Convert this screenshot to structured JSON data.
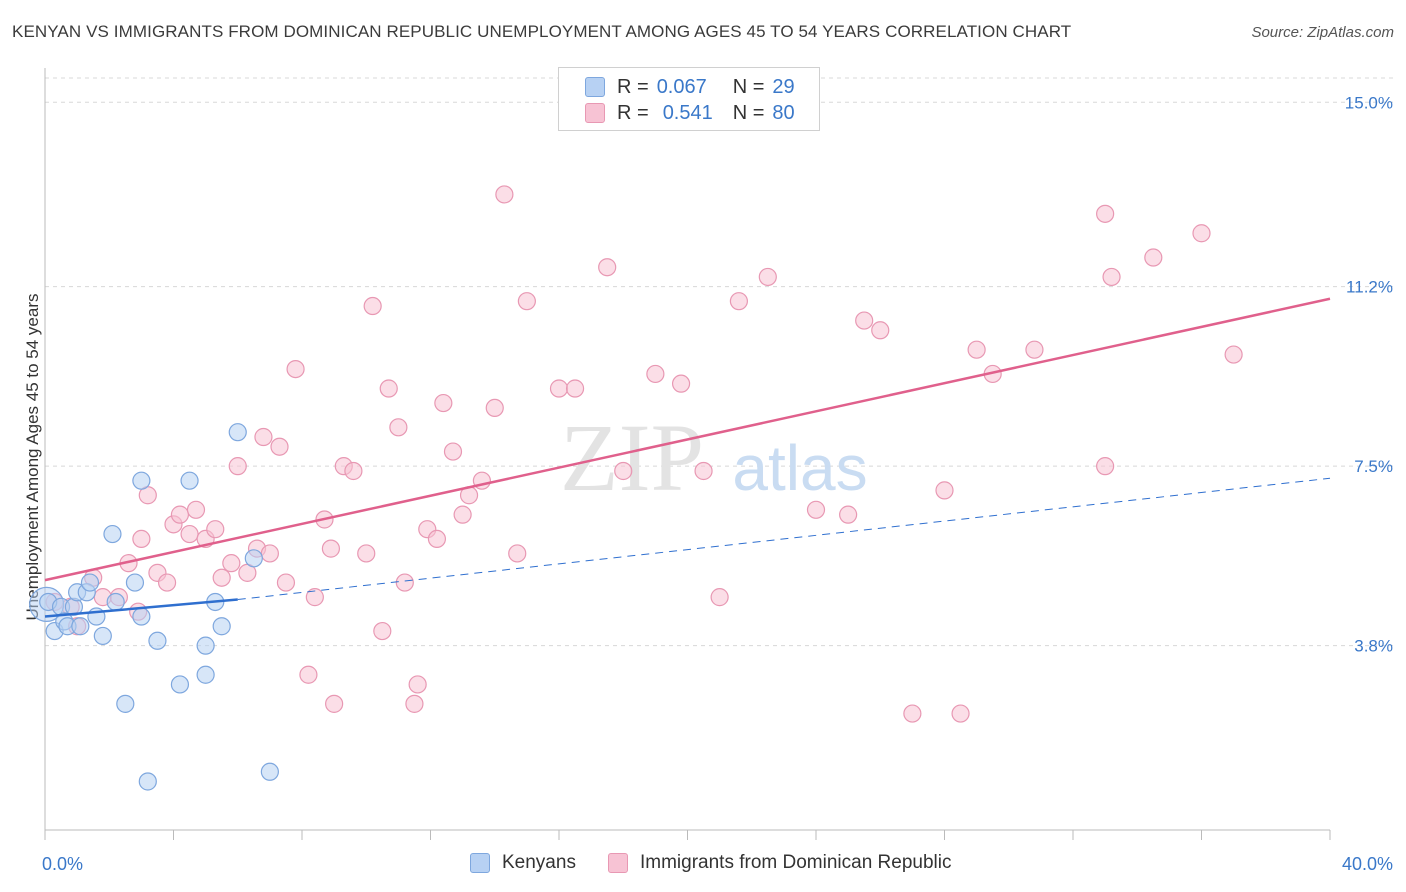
{
  "title": "KENYAN VS IMMIGRANTS FROM DOMINICAN REPUBLIC UNEMPLOYMENT AMONG AGES 45 TO 54 YEARS CORRELATION CHART",
  "source": "Source: ZipAtlas.com",
  "watermark": {
    "zip": "ZIP",
    "atlas": "atlas"
  },
  "legend": {
    "r_label": "R =",
    "n_label": "N =",
    "kenyans": {
      "r": "0.067",
      "n": "29"
    },
    "dominican": {
      "r": "0.541",
      "n": "80"
    }
  },
  "colors": {
    "blue_fill": "#b7d1f3",
    "blue_stroke": "#7ea7de",
    "blue_line": "#2f6fcf",
    "pink_fill": "#f7c3d4",
    "pink_stroke": "#e898b3",
    "pink_line": "#e0608c",
    "axis_text": "#3a78c9",
    "grid": "#d8d8d8"
  },
  "chart_data": {
    "type": "scatter",
    "title": "KENYAN VS IMMIGRANTS FROM DOMINICAN REPUBLIC UNEMPLOYMENT AMONG AGES 45 TO 54 YEARS CORRELATION CHART",
    "xlabel": "",
    "ylabel": "Unemployment Among Ages 45 to 54 years",
    "xlim": [
      0,
      40
    ],
    "ylim": [
      0,
      15.5
    ],
    "x_tick_labels": [
      "0.0%",
      "40.0%"
    ],
    "y_ticks": [
      3.8,
      7.5,
      11.2,
      15.0
    ],
    "y_tick_labels": [
      "3.8%",
      "7.5%",
      "11.2%",
      "15.0%"
    ],
    "grid": true,
    "series": [
      {
        "name": "Kenyans",
        "r": 0.067,
        "n": 29,
        "trend": {
          "solid": [
            [
              0,
              4.4
            ],
            [
              6,
              4.75
            ]
          ],
          "dashed": [
            [
              6,
              4.75
            ],
            [
              40,
              7.25
            ]
          ]
        },
        "points": [
          [
            0.1,
            4.7
          ],
          [
            0.3,
            4.1
          ],
          [
            0.5,
            4.6
          ],
          [
            0.6,
            4.3
          ],
          [
            0.7,
            4.2
          ],
          [
            0.9,
            4.6
          ],
          [
            1.0,
            4.9
          ],
          [
            1.1,
            4.2
          ],
          [
            1.3,
            4.9
          ],
          [
            1.4,
            5.1
          ],
          [
            1.6,
            4.4
          ],
          [
            1.8,
            4.0
          ],
          [
            2.1,
            6.1
          ],
          [
            2.2,
            4.7
          ],
          [
            2.5,
            2.6
          ],
          [
            2.8,
            5.1
          ],
          [
            3.0,
            4.4
          ],
          [
            3.2,
            1.0
          ],
          [
            3.5,
            3.9
          ],
          [
            4.2,
            3.0
          ],
          [
            4.5,
            7.2
          ],
          [
            3.0,
            7.2
          ],
          [
            5.0,
            3.2
          ],
          [
            5.3,
            4.7
          ],
          [
            5.5,
            4.2
          ],
          [
            5.0,
            3.8
          ],
          [
            6.0,
            8.2
          ],
          [
            6.5,
            5.6
          ],
          [
            7.0,
            1.2
          ]
        ]
      },
      {
        "name": "Immigrants from Dominican Republic",
        "r": 0.541,
        "n": 80,
        "trend": {
          "solid": [
            [
              0,
              5.15
            ],
            [
              40,
              10.95
            ]
          ]
        },
        "points": [
          [
            0.3,
            4.7
          ],
          [
            0.8,
            4.6
          ],
          [
            1.0,
            4.2
          ],
          [
            1.5,
            5.2
          ],
          [
            1.8,
            4.8
          ],
          [
            2.3,
            4.8
          ],
          [
            2.6,
            5.5
          ],
          [
            2.9,
            4.5
          ],
          [
            3.0,
            6.0
          ],
          [
            3.2,
            6.9
          ],
          [
            3.5,
            5.3
          ],
          [
            3.8,
            5.1
          ],
          [
            4.0,
            6.3
          ],
          [
            4.2,
            6.5
          ],
          [
            4.5,
            6.1
          ],
          [
            4.7,
            6.6
          ],
          [
            5.0,
            6.0
          ],
          [
            5.3,
            6.2
          ],
          [
            5.5,
            5.2
          ],
          [
            5.8,
            5.5
          ],
          [
            6.0,
            7.5
          ],
          [
            6.3,
            5.3
          ],
          [
            6.6,
            5.8
          ],
          [
            6.8,
            8.1
          ],
          [
            7.0,
            5.7
          ],
          [
            7.3,
            7.9
          ],
          [
            7.5,
            5.1
          ],
          [
            7.8,
            9.5
          ],
          [
            8.2,
            3.2
          ],
          [
            8.4,
            4.8
          ],
          [
            8.7,
            6.4
          ],
          [
            8.9,
            5.8
          ],
          [
            9.0,
            2.6
          ],
          [
            9.3,
            7.5
          ],
          [
            9.6,
            7.4
          ],
          [
            10.0,
            5.7
          ],
          [
            10.2,
            10.8
          ],
          [
            10.5,
            4.1
          ],
          [
            10.7,
            9.1
          ],
          [
            11.0,
            8.3
          ],
          [
            11.2,
            5.1
          ],
          [
            11.5,
            2.6
          ],
          [
            11.6,
            3.0
          ],
          [
            11.9,
            6.2
          ],
          [
            12.2,
            6.0
          ],
          [
            12.4,
            8.8
          ],
          [
            12.7,
            7.8
          ],
          [
            13.0,
            6.5
          ],
          [
            13.2,
            6.9
          ],
          [
            13.6,
            7.2
          ],
          [
            14.0,
            8.7
          ],
          [
            14.3,
            13.1
          ],
          [
            14.7,
            5.7
          ],
          [
            15.0,
            10.9
          ],
          [
            16.0,
            9.1
          ],
          [
            16.5,
            9.1
          ],
          [
            17.5,
            11.6
          ],
          [
            18.0,
            7.4
          ],
          [
            19.0,
            9.4
          ],
          [
            19.8,
            9.2
          ],
          [
            20.5,
            7.4
          ],
          [
            21.0,
            4.8
          ],
          [
            21.6,
            10.9
          ],
          [
            22.5,
            11.4
          ],
          [
            24.0,
            6.6
          ],
          [
            25.0,
            6.5
          ],
          [
            25.5,
            10.5
          ],
          [
            26.0,
            10.3
          ],
          [
            27.0,
            2.4
          ],
          [
            28.0,
            7.0
          ],
          [
            28.5,
            2.4
          ],
          [
            29.0,
            9.9
          ],
          [
            29.5,
            9.4
          ],
          [
            30.8,
            9.9
          ],
          [
            33.0,
            7.5
          ],
          [
            33.0,
            12.7
          ],
          [
            33.2,
            11.4
          ],
          [
            34.5,
            11.8
          ],
          [
            36.0,
            12.3
          ],
          [
            37.0,
            9.8
          ]
        ]
      }
    ]
  }
}
